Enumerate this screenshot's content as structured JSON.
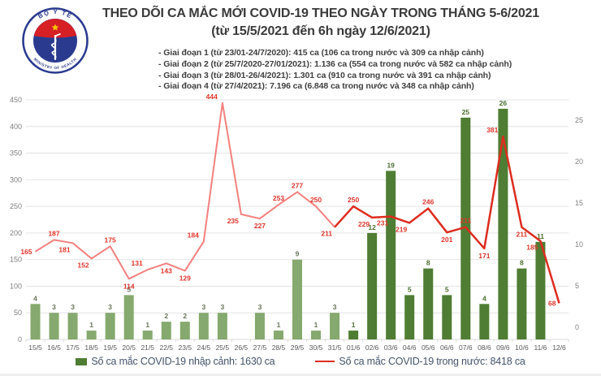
{
  "header": {
    "title": "THEO DÕI CA MẮC MỚI COVID-19 THEO NGÀY TRONG THÁNG 5-6/2021",
    "subtitle": "(từ 15/5/2021 đến 6h ngày 12/6/2021)",
    "logo": {
      "top_text": "BỘ Y TẾ",
      "bottom_text": "MINISTRY OF HEALTH"
    }
  },
  "phases": [
    "- Giai đoạn 1 (từ 23/01-24/7/2020): 415 ca (106 ca trong nước và 309 ca nhập cảnh)",
    "- Giai đoạn 2 (từ 25/7/2020-27/01/2021): 1.136 ca (554 ca trong nước và 582 ca nhập cảnh)",
    "- Giai đoạn 3 (từ 28/01-26/4/2021): 1.301 ca (910 ca trong nước và 391 ca nhập cảnh)",
    "- Giai đoạn 4 (từ 27/4/2021): 7.196 ca (6.848 ca trong nước và 348 ca nhập cảnh)"
  ],
  "chart_data": {
    "type": "combo",
    "categories": [
      "15/5",
      "16/5",
      "17/5",
      "18/5",
      "19/5",
      "20/5",
      "21/5",
      "22/5",
      "23/5",
      "24/5",
      "25/5",
      "26/5",
      "27/5",
      "28/5",
      "29/5",
      "30/5",
      "31/5",
      "01/6",
      "02/6",
      "03/6",
      "04/6",
      "05/6",
      "06/6",
      "07/6",
      "08/6",
      "09/6",
      "10/6",
      "11/6",
      "12/6"
    ],
    "series": [
      {
        "name": "Số ca mắc COVID-19 nhập cảnh",
        "type": "bar",
        "axis": "right",
        "values": [
          4,
          3,
          3,
          1,
          3,
          5,
          1,
          2,
          2,
          3,
          3,
          0,
          3,
          1,
          9,
          1,
          3,
          1,
          12,
          19,
          5,
          8,
          5,
          25,
          4,
          26,
          8,
          11,
          0
        ],
        "split_index": 17,
        "colors": {
          "early": "#85a96e",
          "recent": "#4e7d33",
          "label_early": "#68755a",
          "label_recent": "#4a6e2e"
        }
      },
      {
        "name": "Số ca mắc COVID-19 trong nước",
        "type": "line",
        "axis": "left",
        "values": [
          165,
          187,
          181,
          152,
          175,
          114,
          131,
          143,
          129,
          184,
          444,
          235,
          227,
          253,
          277,
          250,
          211,
          250,
          229,
          231,
          219,
          246,
          201,
          211,
          171,
          381,
          211,
          185,
          68
        ],
        "split_index": 16,
        "colors": {
          "early": "#f3807e",
          "recent": "#dd2c1f",
          "label": "#e0352b"
        }
      }
    ],
    "left_axis": {
      "min": 0,
      "max": 450,
      "step": 50,
      "ticks": [
        450,
        400,
        350,
        300,
        250,
        200,
        150,
        100,
        50,
        0
      ]
    },
    "right_axis": {
      "min": 0,
      "max": 25,
      "step": 5,
      "ticks": [
        25,
        20,
        15,
        10,
        5,
        0
      ]
    },
    "grid": true,
    "legend_position": "bottom",
    "title": "THEO DÕI CA MẮC MỚI COVID-19 THEO NGÀY TRONG THÁNG 5-6/2021"
  },
  "legend": {
    "bars_label": "Số ca mắc COVID-19 nhập cảnh: 1630 ca",
    "line_label": "Số ca mắc COVID-19 trong nước: 8418 ca"
  },
  "colors": {
    "bar_early": "#85a96e",
    "bar_recent": "#4e7d33",
    "line_early": "#f3807e",
    "line_recent": "#dd2c1f",
    "line_label": "#e0352b",
    "grid": "#e4e4e4",
    "axis_text": "#7f7f7f",
    "x_labels": "#595959",
    "legend_text": "#44546a",
    "logo_navy": "#2a3b8f",
    "logo_red": "#d71f26",
    "logo_star": "#f5c400"
  }
}
